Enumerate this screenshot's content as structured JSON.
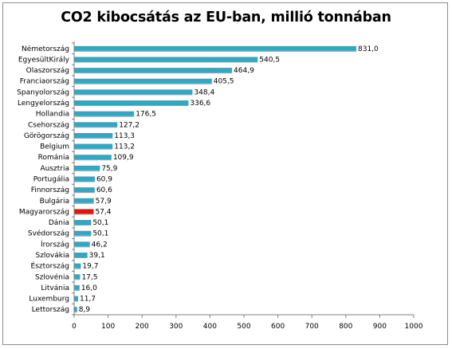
{
  "chart_data": {
    "type": "bar",
    "orientation": "horizontal",
    "title": "CO2 kibocsátás az EU-ban, millió tonnában",
    "xlabel": "",
    "ylabel": "",
    "xlim": [
      0,
      1000
    ],
    "xticks": [
      0,
      100,
      200,
      300,
      400,
      500,
      600,
      700,
      800,
      900,
      1000
    ],
    "grid": false,
    "legend": "none",
    "bar_color": "#31a7c4",
    "highlight_color": "#e0150f",
    "highlight_category": "Magyarország",
    "categories": [
      "Németország",
      "EgyesültKirály",
      "Olaszország",
      "Franciaország",
      "Spanyolország",
      "Lengyelország",
      "Hollandia",
      "Csehország",
      "Görögország",
      "Belgium",
      "Románia",
      "Ausztria",
      "Portugália",
      "Finnország",
      "Bulgária",
      "Magyarország",
      "Dánia",
      "Svédország",
      "Írország",
      "Szlovákia",
      "Észtország",
      "Szlovénia",
      "Litvánia",
      "Luxemburg",
      "Lettország"
    ],
    "values": [
      831.0,
      540.5,
      464.9,
      405.5,
      348.4,
      336.6,
      176.5,
      127.2,
      113.3,
      113.2,
      109.9,
      75.9,
      60.9,
      60.6,
      57.9,
      57.4,
      50.1,
      50.1,
      46.2,
      39.1,
      19.7,
      17.5,
      16.0,
      11.7,
      8.9
    ],
    "value_labels": [
      "831,0",
      "540,5",
      "464,9",
      "405,5",
      "348,4",
      "336,6",
      "176,5",
      "127,2",
      "113,3",
      "113,2",
      "109,9",
      "75,9",
      "60,9",
      "60,6",
      "57,9",
      "57,4",
      "50,1",
      "50,1",
      "46,2",
      "39,1",
      "19,7",
      "17,5",
      "16,0",
      "11,7",
      "8,9"
    ]
  }
}
